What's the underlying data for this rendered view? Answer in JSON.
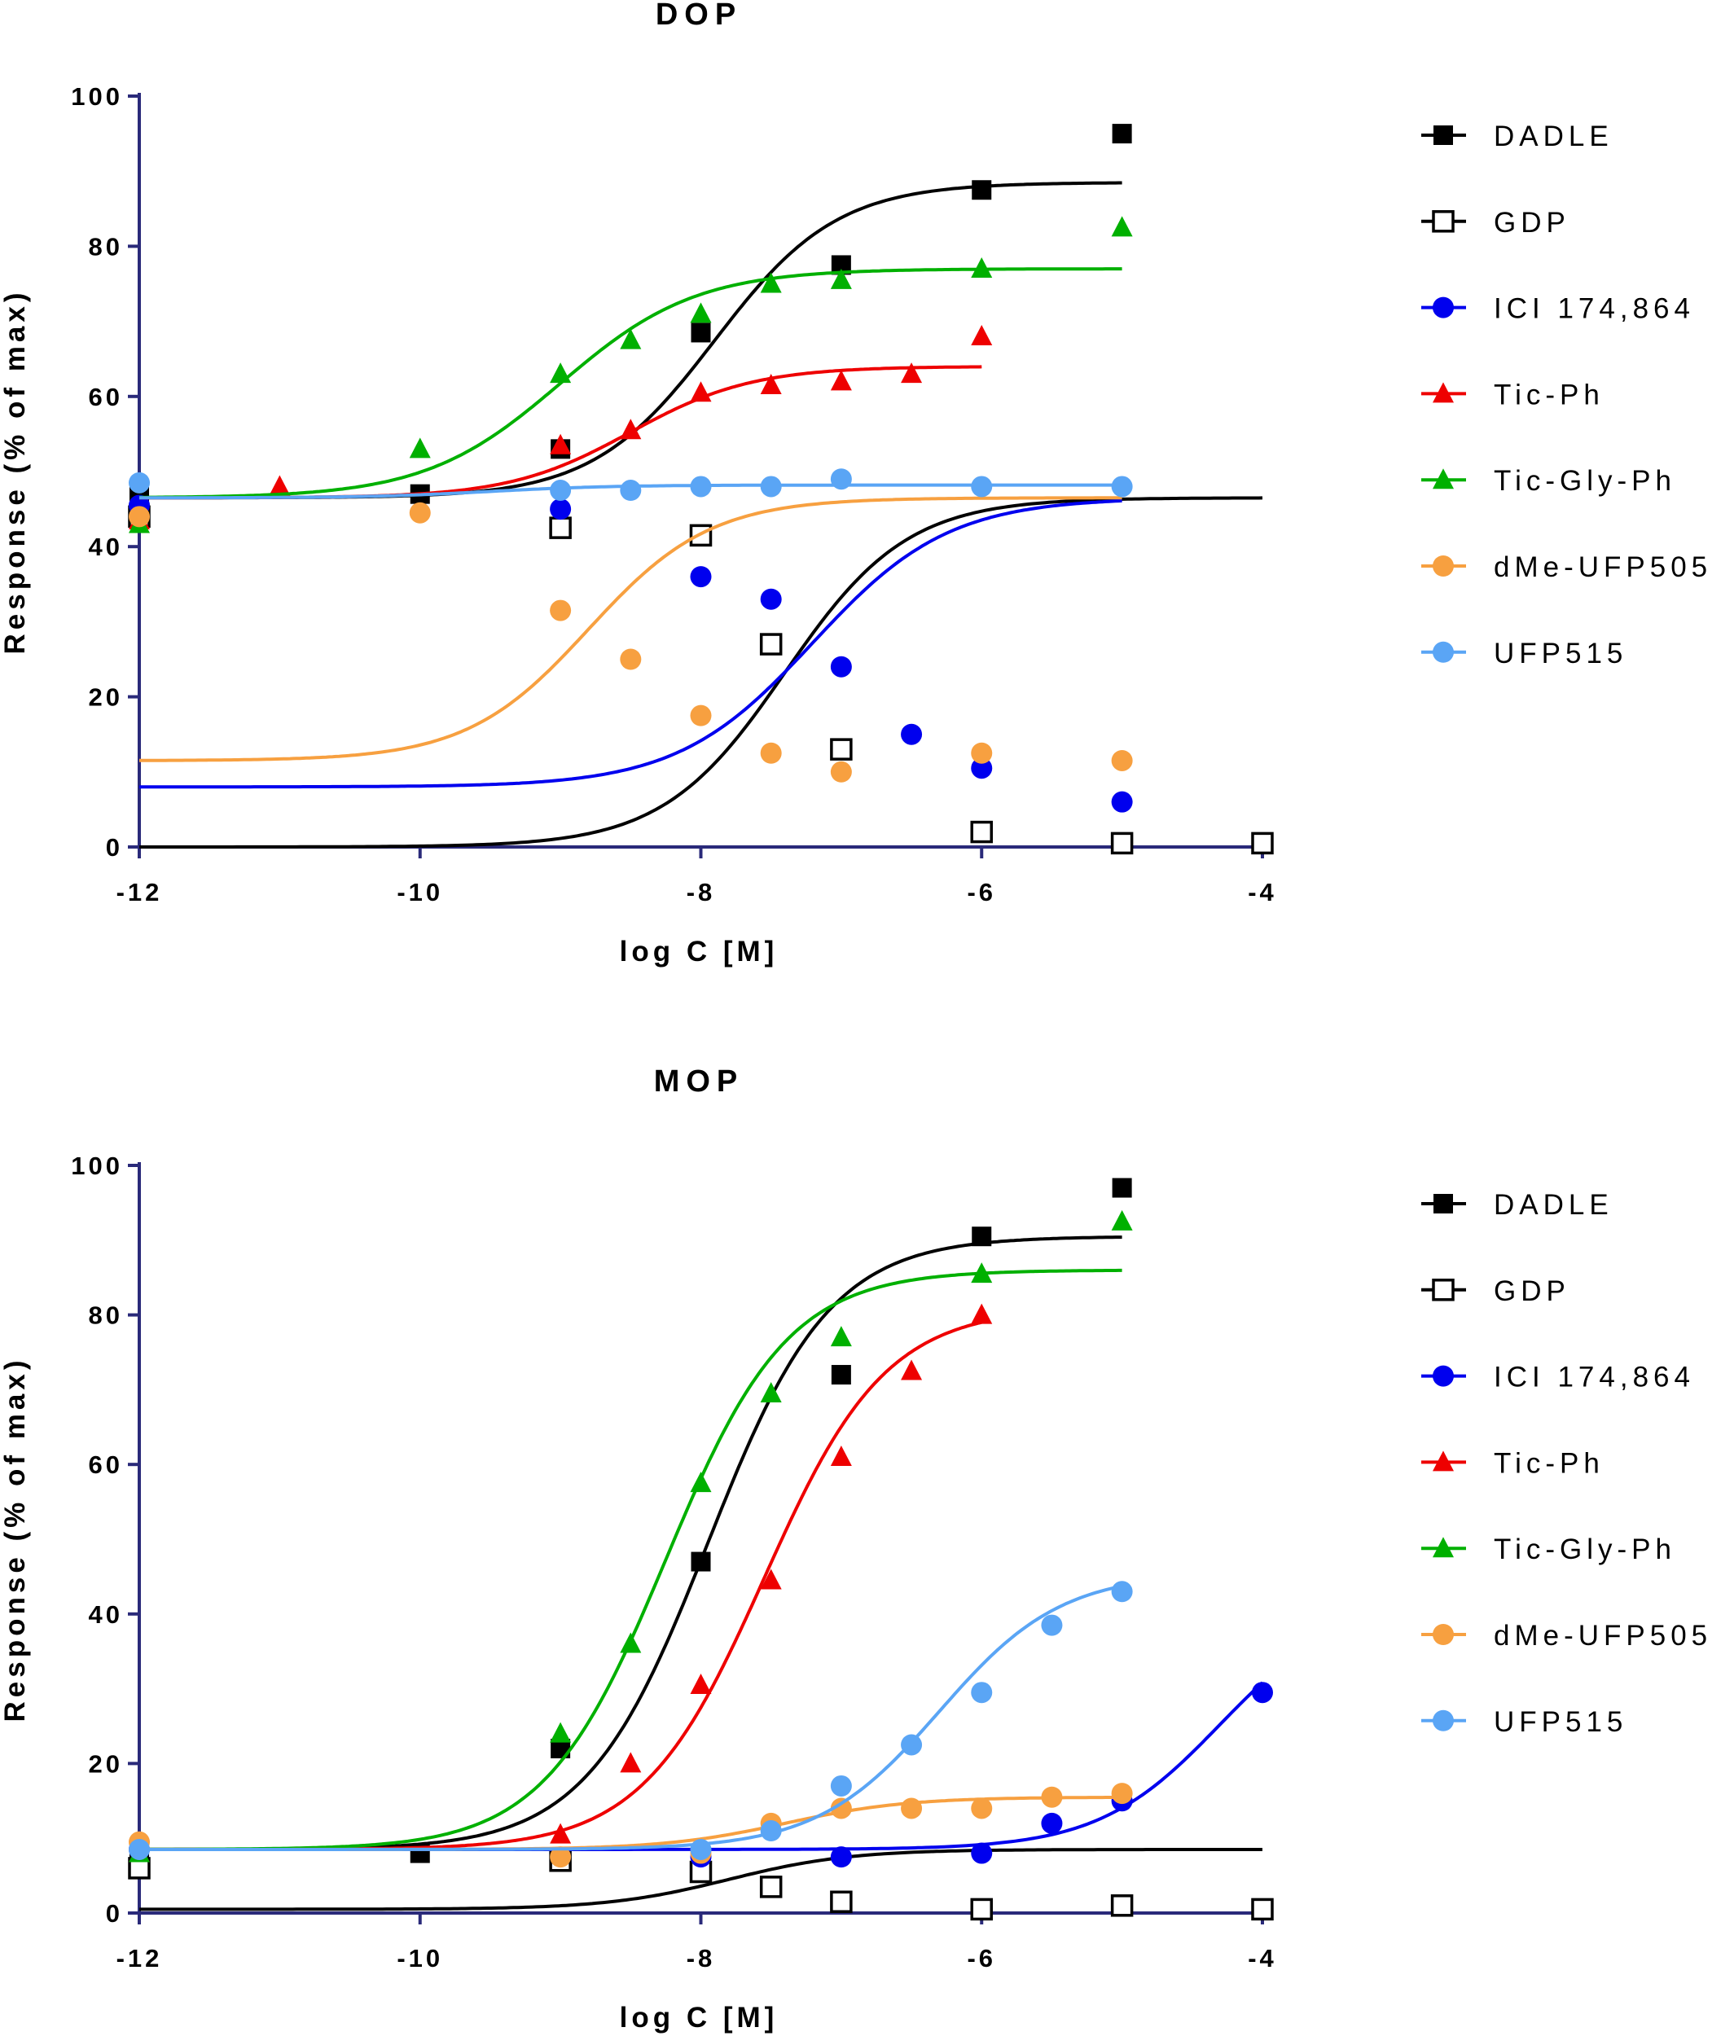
{
  "chart_data": [
    {
      "type": "line",
      "title": "DOP",
      "xlabel": "log C [M]",
      "ylabel": "Response (% of max)",
      "xlim": [
        -12,
        -4
      ],
      "ylim": [
        0,
        100
      ],
      "xticks": [
        "-12",
        "-10",
        "-8",
        "-6",
        "-4"
      ],
      "xtick_values": [
        -12,
        -10,
        -8,
        -6,
        -4
      ],
      "yticks": [
        "0",
        "20",
        "40",
        "60",
        "80",
        "100"
      ],
      "ytick_values": [
        0,
        20,
        40,
        60,
        80,
        100
      ],
      "legend_position": "right",
      "grid": false,
      "series": [
        {
          "name": "DADLE",
          "color": "#000000",
          "marker": "square",
          "fit": {
            "bottom": 46.5,
            "top": 88.5,
            "logEC50": -7.9,
            "hill": 1,
            "range": [
              -12,
              -5
            ]
          },
          "x": [
            -12,
            -10,
            -9,
            -8,
            -7,
            -6,
            -5
          ],
          "y": [
            47,
            47,
            53,
            68.5,
            77.5,
            87.5,
            95
          ]
        },
        {
          "name": "GDP",
          "color": "#000000",
          "marker": "open-square",
          "fit": {
            "bottom": 0,
            "top": 46.5,
            "logEC50": -7.4,
            "hill": 1,
            "range": [
              -12,
              -4
            ]
          },
          "x": [
            -12,
            -9,
            -8,
            -7.5,
            -7,
            -6,
            -5,
            -4
          ],
          "y": [
            44,
            42.5,
            41.5,
            27,
            13,
            2,
            0.5,
            0.5
          ]
        },
        {
          "name": "ICI 174,864",
          "color": "#0000ee",
          "marker": "circle",
          "fit": {
            "bottom": 8,
            "top": 46.5,
            "logEC50": -7.2,
            "hill": 0.9,
            "range": [
              -12,
              -5
            ]
          },
          "x": [
            -12,
            -9,
            -8,
            -7.5,
            -7,
            -6.5,
            -6,
            -5
          ],
          "y": [
            45.5,
            45,
            36,
            33,
            24,
            15,
            10.5,
            6
          ]
        },
        {
          "name": "Tic-Ph",
          "color": "#ee0000",
          "marker": "triangle",
          "fit": {
            "bottom": 46.5,
            "top": 64,
            "logEC50": -8.5,
            "hill": 1,
            "range": [
              -12,
              -6
            ]
          },
          "x": [
            -12,
            -11,
            -9,
            -8.5,
            -8,
            -7.5,
            -7,
            -6.5,
            -6
          ],
          "y": [
            43.5,
            48,
            53.5,
            55.5,
            60.5,
            61.5,
            62,
            63,
            68
          ]
        },
        {
          "name": "Tic-Gly-Ph",
          "color": "#00b000",
          "marker": "triangle",
          "fit": {
            "bottom": 46.5,
            "top": 77,
            "logEC50": -9.0,
            "hill": 0.9,
            "range": [
              -12,
              -5
            ]
          },
          "x": [
            -12,
            -10,
            -9,
            -8.5,
            -8,
            -7.5,
            -7,
            -6,
            -5
          ],
          "y": [
            43,
            53,
            63,
            67.5,
            71,
            75,
            75.5,
            77,
            82.5
          ]
        },
        {
          "name": "dMe-UFP505",
          "color": "#f7a040",
          "marker": "circle",
          "fit": {
            "bottom": 11.5,
            "top": 46.5,
            "logEC50": -8.8,
            "hill": 1,
            "range": [
              -12,
              -5
            ]
          },
          "x": [
            -12,
            -10,
            -9,
            -8.5,
            -8,
            -7.5,
            -7,
            -6,
            -5
          ],
          "y": [
            44,
            44.5,
            31.5,
            25,
            17.5,
            12.5,
            10,
            12.5,
            11.5
          ]
        },
        {
          "name": "UFP515",
          "color": "#5aa5f5",
          "marker": "circle",
          "fit": {
            "bottom": 46.5,
            "top": 48.2,
            "logEC50": -9.5,
            "hill": 1,
            "range": [
              -12,
              -5
            ]
          },
          "x": [
            -12,
            -9,
            -8.5,
            -8,
            -7.5,
            -7,
            -6,
            -5
          ],
          "y": [
            48.5,
            47.5,
            47.5,
            48,
            48,
            49,
            48,
            48
          ]
        }
      ]
    },
    {
      "type": "line",
      "title": "MOP",
      "xlabel": "log C [M]",
      "ylabel": "Response (% of max)",
      "xlim": [
        -12,
        -4
      ],
      "ylim": [
        0,
        100
      ],
      "xticks": [
        "-12",
        "-10",
        "-8",
        "-6",
        "-4"
      ],
      "xtick_values": [
        -12,
        -10,
        -8,
        -6,
        -4
      ],
      "yticks": [
        "0",
        "20",
        "40",
        "60",
        "80",
        "100"
      ],
      "ytick_values": [
        0,
        20,
        40,
        60,
        80,
        100
      ],
      "legend_position": "right",
      "grid": false,
      "series": [
        {
          "name": "DADLE",
          "color": "#000000",
          "marker": "square",
          "fit": {
            "bottom": 8.5,
            "top": 90.5,
            "logEC50": -7.95,
            "hill": 1,
            "range": [
              -12,
              -5
            ]
          },
          "x": [
            -12,
            -10,
            -9,
            -8,
            -7,
            -6,
            -5
          ],
          "y": [
            7.5,
            8,
            22,
            47,
            72,
            90.5,
            97
          ]
        },
        {
          "name": "GDP",
          "color": "#000000",
          "marker": "open-square",
          "fit": {
            "bottom": 0.5,
            "top": 8.5,
            "logEC50": -7.8,
            "hill": 1,
            "range": [
              -12,
              -4
            ]
          },
          "x": [
            -12,
            -9,
            -8,
            -7.5,
            -7,
            -6,
            -5,
            -4
          ],
          "y": [
            6,
            7,
            5.5,
            3.5,
            1.5,
            0.5,
            1,
            0.5
          ]
        },
        {
          "name": "ICI 174,864",
          "color": "#0000ee",
          "marker": "circle",
          "fit": {
            "bottom": 8.5,
            "top": 42,
            "logEC50": -4.3,
            "hill": 1,
            "range": [
              -12,
              -4
            ]
          },
          "x": [
            -12,
            -8,
            -7,
            -6,
            -5.5,
            -5,
            -4
          ],
          "y": [
            8.5,
            7.5,
            7.5,
            8,
            12,
            15,
            29.5
          ]
        },
        {
          "name": "Tic-Ph",
          "color": "#ee0000",
          "marker": "triangle",
          "fit": {
            "bottom": 8.5,
            "top": 81,
            "logEC50": -7.55,
            "hill": 1,
            "range": [
              -12,
              -6
            ]
          },
          "x": [
            -12,
            -9,
            -8.5,
            -8,
            -7.5,
            -7,
            -6.5,
            -6
          ],
          "y": [
            8,
            10.5,
            20,
            30.5,
            44.5,
            61,
            72.5,
            80
          ]
        },
        {
          "name": "Tic-Gly-Ph",
          "color": "#00b000",
          "marker": "triangle",
          "fit": {
            "bottom": 8.5,
            "top": 86,
            "logEC50": -8.25,
            "hill": 1,
            "range": [
              -12,
              -5
            ]
          },
          "x": [
            -12,
            -9,
            -8.5,
            -8,
            -7.5,
            -7,
            -6,
            -5
          ],
          "y": [
            8,
            24,
            36,
            57.5,
            69.5,
            77,
            85.5,
            92.5
          ]
        },
        {
          "name": "dMe-UFP505",
          "color": "#f7a040",
          "marker": "circle",
          "fit": {
            "bottom": 8.5,
            "top": 15.5,
            "logEC50": -7.4,
            "hill": 1,
            "range": [
              -12,
              -5
            ]
          },
          "x": [
            -12,
            -9,
            -8,
            -7.5,
            -7,
            -6.5,
            -6,
            -5.5,
            -5
          ],
          "y": [
            9.5,
            7.5,
            8,
            12,
            14,
            14,
            14,
            15.5,
            16
          ]
        },
        {
          "name": "UFP515",
          "color": "#5aa5f5",
          "marker": "circle",
          "fit": {
            "bottom": 8.5,
            "top": 45.5,
            "logEC50": -6.3,
            "hill": 1,
            "range": [
              -12,
              -5
            ]
          },
          "x": [
            -12,
            -8,
            -7.5,
            -7,
            -6.5,
            -6,
            -5.5,
            -5
          ],
          "y": [
            8.5,
            8.5,
            11,
            17,
            22.5,
            29.5,
            38.5,
            43
          ]
        }
      ]
    }
  ]
}
